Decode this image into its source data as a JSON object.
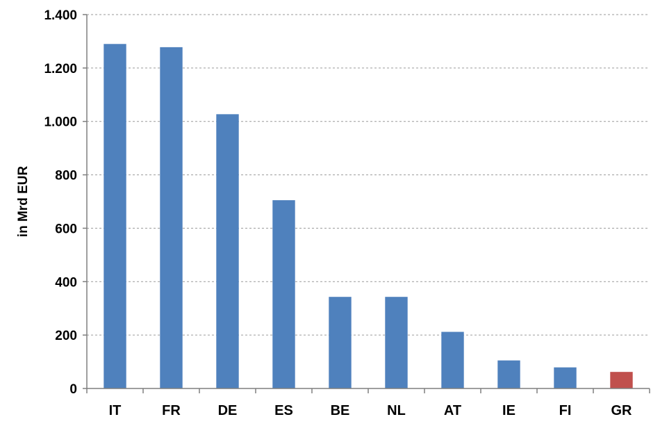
{
  "chart_data": {
    "type": "bar",
    "categories": [
      "IT",
      "FR",
      "DE",
      "ES",
      "BE",
      "NL",
      "AT",
      "IE",
      "FI",
      "GR"
    ],
    "values": [
      1290,
      1278,
      1027,
      705,
      343,
      343,
      212,
      105,
      79,
      62
    ],
    "ylabel": "in Mrd EUR",
    "ylim": [
      0,
      1400
    ],
    "yticks": [
      0,
      200,
      400,
      600,
      800,
      1000,
      1200,
      1400
    ],
    "ytick_labels": [
      "0",
      "200",
      "400",
      "600",
      "800",
      "1.000",
      "1.200",
      "1.400"
    ],
    "grid": true,
    "colors": {
      "default_bar": "#4f81bd",
      "highlight_bar": "#c0504d",
      "highlight_category": "GR"
    }
  }
}
